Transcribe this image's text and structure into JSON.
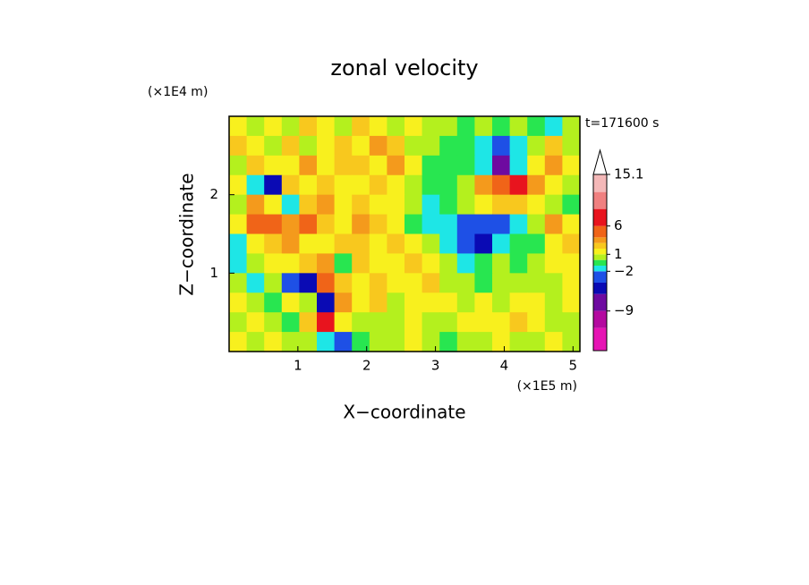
{
  "chart_data": {
    "type": "contourf",
    "title": "zonal velocity",
    "time_label": "t=171600 s",
    "x_label": "X−coordinate",
    "y_label": "Z−coordinate",
    "x_unit": "(×1E5 m)",
    "y_unit": "(×1E4 m)",
    "xlim": [
      0,
      5.1
    ],
    "ylim": [
      0,
      3
    ],
    "xticks": [
      1,
      2,
      3,
      4,
      5
    ],
    "yticks": [
      1,
      2
    ],
    "z": [
      [
        1,
        0,
        1.5,
        0,
        2,
        1,
        0.5,
        2.5,
        1.5,
        0,
        1,
        0.5,
        0,
        -0.5,
        0,
        -0.5,
        0.5,
        -0.5,
        -1.5,
        0
      ],
      [
        2,
        1,
        0,
        2.5,
        0.5,
        1.5,
        2.5,
        1,
        3,
        2,
        0.5,
        0,
        -0.5,
        -0.5,
        -1.5,
        -3,
        -1.5,
        0.5,
        2,
        0.5
      ],
      [
        0.5,
        2.5,
        1,
        1.5,
        3,
        1,
        2,
        2.5,
        1.5,
        3.5,
        1,
        -0.5,
        -1,
        -0.5,
        -1.5,
        -7,
        -2,
        1,
        3,
        1
      ],
      [
        1.5,
        -1.5,
        -5,
        2,
        1,
        2.5,
        1.5,
        1,
        2.5,
        1,
        0.5,
        -1,
        -0.5,
        0.5,
        3,
        5,
        6,
        3,
        1.5,
        0
      ],
      [
        0.5,
        3,
        1,
        -1.5,
        2,
        3.5,
        1,
        2.5,
        1,
        1.5,
        0.5,
        -1.5,
        -0.5,
        0,
        1.5,
        2.5,
        2,
        1,
        0,
        -1
      ],
      [
        1,
        4.5,
        5,
        3,
        4,
        2,
        1.5,
        3,
        2,
        1,
        -1,
        -1.5,
        -2,
        -2.5,
        -3,
        -2.5,
        -1.5,
        0,
        3,
        1
      ],
      [
        -1.5,
        1,
        2,
        3.5,
        1.5,
        1,
        2.5,
        2,
        1,
        2,
        1,
        0,
        -1.5,
        -3,
        -5,
        -2,
        -1,
        -0.5,
        1,
        2
      ],
      [
        -2,
        0,
        1.5,
        1,
        2,
        3,
        -1,
        2,
        1.5,
        1,
        2,
        1,
        0,
        -1.5,
        -1,
        0,
        -0.5,
        0.5,
        1,
        1.5
      ],
      [
        0.5,
        -1.5,
        0,
        -3,
        -5,
        4,
        2,
        1.5,
        2.5,
        1,
        1.5,
        2,
        0.5,
        0,
        -0.5,
        0,
        0.5,
        0,
        0.5,
        1
      ],
      [
        1,
        0,
        -1,
        1,
        0,
        -6,
        3,
        1,
        2,
        0.5,
        1,
        1.5,
        1,
        0,
        1,
        0.5,
        1,
        1.5,
        0.5,
        1
      ],
      [
        0,
        1.5,
        0.5,
        -1,
        2,
        7,
        1,
        0.5,
        0,
        0.5,
        1,
        0,
        0.5,
        1.5,
        1,
        1.5,
        2,
        1,
        0.5,
        0
      ],
      [
        1,
        0,
        1,
        0,
        0.5,
        -2,
        -4,
        -1,
        0,
        0.5,
        1,
        0,
        -0.5,
        0,
        0.5,
        1,
        0.5,
        0,
        1,
        0.5
      ]
    ],
    "colorbar": {
      "levels": [
        -16,
        -12,
        -9,
        -6,
        -4,
        -2,
        -1,
        0,
        1,
        2,
        3,
        4,
        6,
        9,
        12,
        15.1
      ],
      "colors": [
        "#e614b4",
        "#b40aa0",
        "#6e0aa0",
        "#0a0ab4",
        "#1e50e6",
        "#1ee6e6",
        "#28e650",
        "#b4f01e",
        "#f8f01e",
        "#f8c81e",
        "#f49a1c",
        "#f06418",
        "#e8141e",
        "#f08080",
        "#f4b8b8"
      ],
      "extend": "max",
      "extend_color": "#ffffff",
      "ticks": [
        15.1,
        6,
        1,
        {
          "value": -2,
          "label": "−2"
        },
        {
          "value": -9,
          "label": "−9"
        }
      ]
    }
  }
}
